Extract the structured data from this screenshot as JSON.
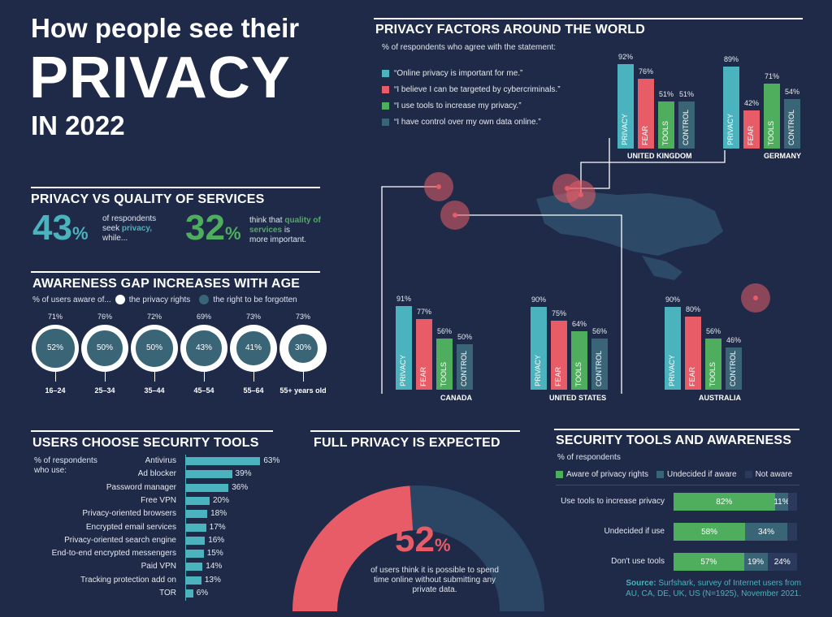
{
  "title": {
    "line1": "How people see their",
    "line2": "PRIVACY",
    "line3": "IN 2022"
  },
  "pvq": {
    "header": "PRIVACY VS QUALITY OF SERVICES",
    "left_value": "43",
    "left_pct": "%",
    "left_text_a": "of respondents",
    "left_text_b": "seek",
    "left_text_hl": "privacy,",
    "left_text_c": "while...",
    "right_value": "32",
    "right_pct": "%",
    "right_text_a": "think that",
    "right_text_hl": "quality of services",
    "right_text_b": "is",
    "right_text_c": "more important."
  },
  "awareness": {
    "header": "AWARENESS GAP INCREASES WITH AGE",
    "legend_prefix": "% of users aware of...",
    "legend_a": "the privacy rights",
    "legend_b": "the right to be forgotten",
    "groups": [
      {
        "age": "16–24",
        "rights": "71%",
        "forgotten": "52%",
        "rights_v": 71,
        "forgotten_v": 52
      },
      {
        "age": "25–34",
        "rights": "76%",
        "forgotten": "50%",
        "rights_v": 76,
        "forgotten_v": 50
      },
      {
        "age": "35–44",
        "rights": "72%",
        "forgotten": "50%",
        "rights_v": 72,
        "forgotten_v": 50
      },
      {
        "age": "45–54",
        "rights": "69%",
        "forgotten": "43%",
        "rights_v": 69,
        "forgotten_v": 43
      },
      {
        "age": "55–64",
        "rights": "73%",
        "forgotten": "41%",
        "rights_v": 73,
        "forgotten_v": 41
      },
      {
        "age": "55+ years old",
        "rights": "73%",
        "forgotten": "30%",
        "rights_v": 73,
        "forgotten_v": 30
      }
    ]
  },
  "world": {
    "header": "PRIVACY FACTORS AROUND THE WORLD",
    "subtitle": "% of respondents who agree with the statement:",
    "legend": [
      {
        "text": "“Online privacy is important for me.”",
        "color": "#4bb3bd"
      },
      {
        "text": "“I believe I can be targeted by cybercriminals.”",
        "color": "#e85c68"
      },
      {
        "text": "“I use tools to increase my privacy.”",
        "color": "#4fae5e"
      },
      {
        "text": "“I have control over my own data online.”",
        "color": "#3a6577"
      }
    ],
    "bar_labels": [
      "PRIVACY",
      "FEAR",
      "TOOLS",
      "CONTROL"
    ],
    "colors": [
      "#4bb3bd",
      "#e85c68",
      "#4fae5e",
      "#3a6577"
    ]
  },
  "chart_data": {
    "type": "bar",
    "title": "PRIVACY FACTORS AROUND THE WORLD",
    "categories": [
      "PRIVACY",
      "FEAR",
      "TOOLS",
      "CONTROL"
    ],
    "series": [
      {
        "name": "UNITED KINGDOM",
        "values": [
          92,
          76,
          51,
          51
        ]
      },
      {
        "name": "GERMANY",
        "values": [
          89,
          42,
          71,
          54
        ]
      },
      {
        "name": "CANADA",
        "values": [
          91,
          77,
          56,
          50
        ]
      },
      {
        "name": "UNITED STATES",
        "values": [
          90,
          75,
          64,
          56
        ]
      },
      {
        "name": "AUSTRALIA",
        "values": [
          90,
          80,
          56,
          46
        ]
      }
    ],
    "ylim": [
      0,
      100
    ]
  },
  "tools": {
    "header": "USERS CHOOSE SECURITY TOOLS",
    "subtitle_a": "% of respondents",
    "subtitle_b": "who use:",
    "items": [
      {
        "label": "Antivirus",
        "value": 63,
        "text": "63%"
      },
      {
        "label": "Ad blocker",
        "value": 39,
        "text": "39%"
      },
      {
        "label": "Password manager",
        "value": 36,
        "text": "36%"
      },
      {
        "label": "Free VPN",
        "value": 20,
        "text": "20%"
      },
      {
        "label": "Privacy-oriented browsers",
        "value": 18,
        "text": "18%"
      },
      {
        "label": "Encrypted email services",
        "value": 17,
        "text": "17%"
      },
      {
        "label": "Privacy-oriented search engine",
        "value": 16,
        "text": "16%"
      },
      {
        "label": "End-to-end encrypted messengers",
        "value": 15,
        "text": "15%"
      },
      {
        "label": "Paid VPN",
        "value": 14,
        "text": "14%"
      },
      {
        "label": "Tracking protection add on",
        "value": 13,
        "text": "13%"
      },
      {
        "label": "TOR",
        "value": 6,
        "text": "6%"
      }
    ]
  },
  "full_privacy": {
    "header": "FULL PRIVACY IS EXPECTED",
    "value": "52",
    "pct": "%",
    "value_num": 52,
    "text_a": "of users think it is possible to spend",
    "text_b": "time online without submitting any",
    "text_c": "private data."
  },
  "sec_aware": {
    "header": "SECURITY TOOLS AND AWARENESS",
    "subtitle": "% of respondents",
    "legend": [
      {
        "text": "Aware of privacy rights",
        "color": "#4fae5e"
      },
      {
        "text": "Undecided if aware",
        "color": "#3a6577"
      },
      {
        "text": "Not aware",
        "color": "#2b3a5c"
      }
    ],
    "rows": [
      {
        "label": "Use tools to increase privacy",
        "values": [
          82,
          11,
          7
        ],
        "texts": [
          "82%",
          "11%",
          ""
        ]
      },
      {
        "label": "Undecided if use",
        "values": [
          58,
          34,
          8
        ],
        "texts": [
          "58%",
          "34%",
          ""
        ]
      },
      {
        "label": "Don't use tools",
        "values": [
          57,
          19,
          24
        ],
        "texts": [
          "57%",
          "19%",
          "24%"
        ]
      }
    ]
  },
  "source": {
    "label": "Source:",
    "text_a": "Surfshark, survey of Internet users from",
    "text_b": "AU, CA, DE, UK, US (N=1925), November 2021."
  }
}
